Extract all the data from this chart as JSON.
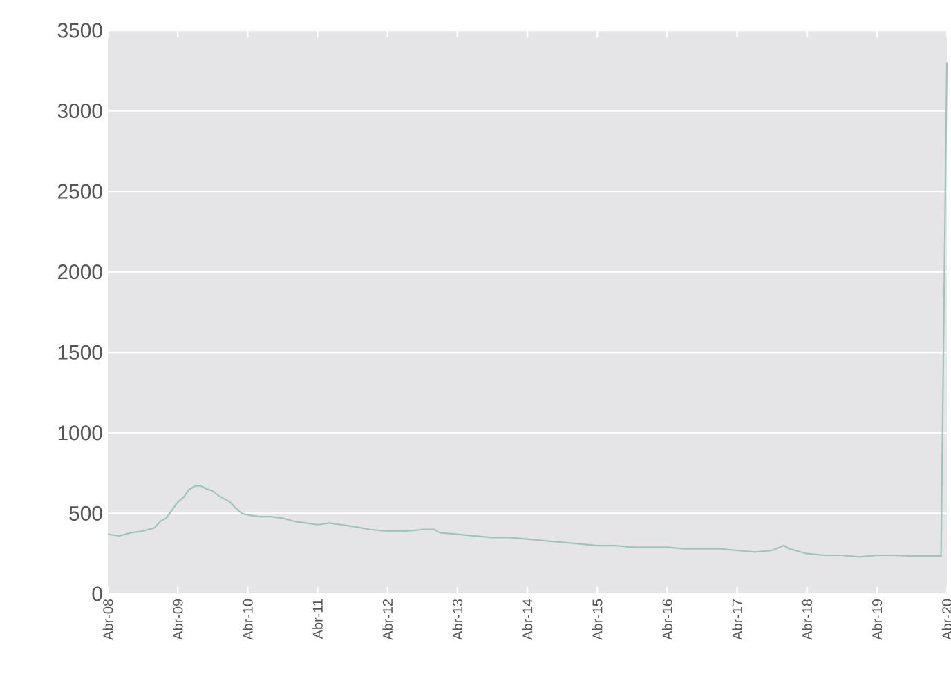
{
  "chart_data": {
    "type": "line",
    "x": [
      "2008-04",
      "2008-06",
      "2008-08",
      "2008-10",
      "2008-12",
      "2009-01",
      "2009-02",
      "2009-03",
      "2009-04",
      "2009-05",
      "2009-06",
      "2009-07",
      "2009-08",
      "2009-09",
      "2009-10",
      "2009-11",
      "2009-12",
      "2010-01",
      "2010-02",
      "2010-03",
      "2010-04",
      "2010-06",
      "2010-08",
      "2010-10",
      "2010-12",
      "2011-02",
      "2011-04",
      "2011-06",
      "2011-08",
      "2011-10",
      "2012-01",
      "2012-04",
      "2012-07",
      "2012-10",
      "2012-12",
      "2013-01",
      "2013-04",
      "2013-07",
      "2013-10",
      "2014-01",
      "2014-04",
      "2014-07",
      "2014-10",
      "2015-01",
      "2015-04",
      "2015-07",
      "2015-10",
      "2016-01",
      "2016-04",
      "2016-07",
      "2016-10",
      "2017-01",
      "2017-04",
      "2017-07",
      "2017-10",
      "2017-12",
      "2018-01",
      "2018-04",
      "2018-07",
      "2018-10",
      "2019-01",
      "2019-04",
      "2019-07",
      "2019-10",
      "2020-01",
      "2020-03",
      "2020-04"
    ],
    "series": [
      {
        "color": "#9cc5b8",
        "values": [
          370,
          360,
          380,
          390,
          410,
          450,
          470,
          520,
          570,
          600,
          650,
          670,
          670,
          650,
          640,
          610,
          590,
          570,
          530,
          500,
          490,
          480,
          480,
          470,
          450,
          440,
          430,
          440,
          430,
          420,
          400,
          390,
          390,
          400,
          400,
          380,
          370,
          360,
          350,
          350,
          340,
          330,
          320,
          310,
          300,
          300,
          290,
          290,
          290,
          280,
          280,
          280,
          270,
          260,
          270,
          300,
          280,
          250,
          240,
          240,
          230,
          240,
          240,
          235,
          235,
          235,
          3300
        ]
      }
    ],
    "xlim": [
      "2008-04",
      "2020-04"
    ],
    "xticks": [
      {
        "value": "2008-04",
        "label": "Abr-08"
      },
      {
        "value": "2009-04",
        "label": "Abr-09"
      },
      {
        "value": "2010-04",
        "label": "Abr-10"
      },
      {
        "value": "2011-04",
        "label": "Abr-11"
      },
      {
        "value": "2012-04",
        "label": "Abr-12"
      },
      {
        "value": "2013-04",
        "label": "Abr-13"
      },
      {
        "value": "2014-04",
        "label": "Abr-14"
      },
      {
        "value": "2015-04",
        "label": "Abr-15"
      },
      {
        "value": "2016-04",
        "label": "Abr-16"
      },
      {
        "value": "2017-04",
        "label": "Abr-17"
      },
      {
        "value": "2018-04",
        "label": "Abr-18"
      },
      {
        "value": "2019-04",
        "label": "Abr-19"
      },
      {
        "value": "2020-04",
        "label": "Abr-20"
      }
    ],
    "ylim": [
      0,
      3500
    ],
    "yticks": [
      0,
      500,
      1000,
      1500,
      2000,
      2500,
      3000,
      3500
    ],
    "grid": "y"
  }
}
